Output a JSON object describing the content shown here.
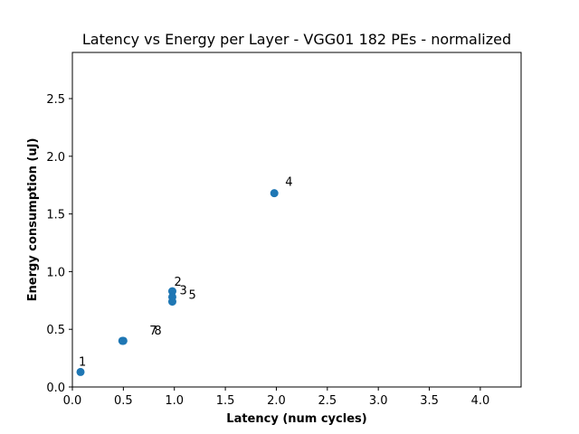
{
  "chart_data": {
    "type": "scatter",
    "title": "Latency vs Energy per Layer - VGG01 182 PEs - normalized",
    "xlabel": "Latency (num cycles)",
    "ylabel": "Energy consumption (uJ)",
    "xlim": [
      0,
      4.4
    ],
    "ylim": [
      0,
      2.9
    ],
    "xticks": [
      0.0,
      0.5,
      1.0,
      1.5,
      2.0,
      2.5,
      3.0,
      3.5,
      4.0
    ],
    "yticks": [
      0.0,
      0.5,
      1.0,
      1.5,
      2.0,
      2.5
    ],
    "xtick_labels": [
      "0.0",
      "0.5",
      "1.0",
      "1.5",
      "2.0",
      "2.5",
      "3.0",
      "3.5",
      "4.0"
    ],
    "ytick_labels": [
      "0.0",
      "0.5",
      "1.0",
      "1.5",
      "2.0",
      "2.5"
    ],
    "grid": false,
    "color": "#1f77b4",
    "points": [
      {
        "label": "1",
        "x": 0.08,
        "y": 0.13
      },
      {
        "label": "2",
        "x": 0.98,
        "y": 0.83
      },
      {
        "label": "3",
        "x": 0.98,
        "y": 0.78
      },
      {
        "label": "4",
        "x": 1.98,
        "y": 1.68
      },
      {
        "label": "5",
        "x": 0.98,
        "y": 0.74
      },
      {
        "label": "7",
        "x": 0.49,
        "y": 0.4
      },
      {
        "label": "8",
        "x": 0.5,
        "y": 0.4
      }
    ]
  }
}
